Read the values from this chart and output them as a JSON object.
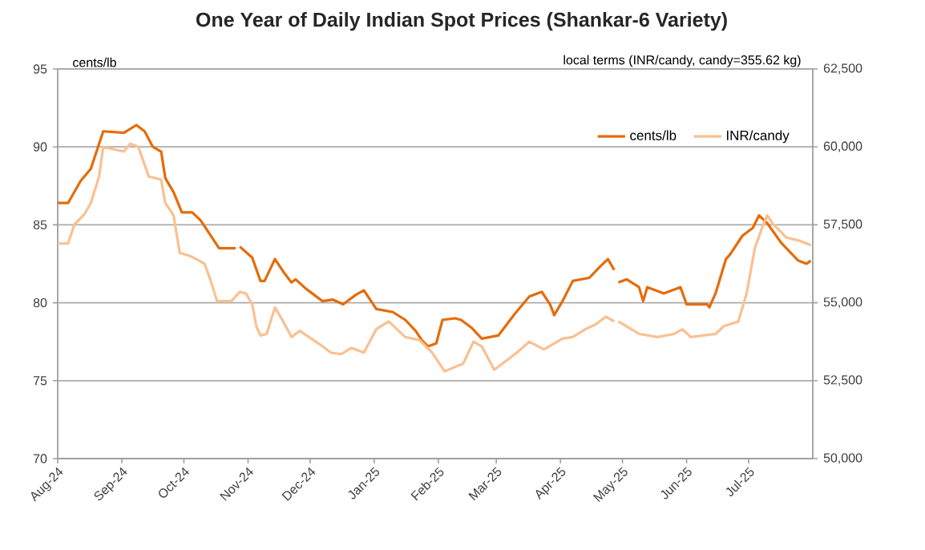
{
  "chart_data": {
    "type": "line",
    "title": "One Year of Daily Indian Spot Prices (Shankar-6 Variety)",
    "ylabel": "cents/lb",
    "y2label": "local terms (INR/candy, candy=355.62 kg)",
    "xlim": [
      "2024-08-01",
      "2025-08-01"
    ],
    "xticks": [
      {
        "value": "2024-08-01",
        "label": "Aug-24"
      },
      {
        "value": "2024-09-01",
        "label": "Sep-24"
      },
      {
        "value": "2024-10-01",
        "label": "Oct-24"
      },
      {
        "value": "2024-11-01",
        "label": "Nov-24"
      },
      {
        "value": "2024-12-01",
        "label": "Dec-24"
      },
      {
        "value": "2025-01-01",
        "label": "Jan-25"
      },
      {
        "value": "2025-02-01",
        "label": "Feb-25"
      },
      {
        "value": "2025-03-01",
        "label": "Mar-25"
      },
      {
        "value": "2025-04-01",
        "label": "Apr-25"
      },
      {
        "value": "2025-05-01",
        "label": "May-25"
      },
      {
        "value": "2025-06-01",
        "label": "Jun-25"
      },
      {
        "value": "2025-07-01",
        "label": "Jul-25"
      }
    ],
    "ylim": [
      70,
      95
    ],
    "yticks": [
      70,
      75,
      80,
      85,
      90,
      95
    ],
    "y2lim": [
      50000,
      62500
    ],
    "y2ticks": [
      {
        "value": 50000,
        "label": "50,000"
      },
      {
        "value": 52500,
        "label": "52,500"
      },
      {
        "value": 55000,
        "label": "55,000"
      },
      {
        "value": 57500,
        "label": "57,500"
      },
      {
        "value": 60000,
        "label": "60,000"
      },
      {
        "value": 62500,
        "label": "62,500"
      }
    ],
    "grid": "y",
    "legend": "top right",
    "marker": "none",
    "series": [
      {
        "name": "cents/lb",
        "color": "#e46c0a",
        "x": [
          "2024-08-01",
          "2024-08-06",
          "2024-08-12",
          "2024-08-17",
          "2024-08-23",
          "2024-09-02",
          "2024-09-08",
          "2024-09-12",
          "2024-09-16",
          "2024-09-20",
          "2024-09-22",
          "2024-09-26",
          "2024-09-30",
          "2024-10-05",
          "2024-10-09",
          "2024-10-13",
          "2024-10-18",
          "2024-10-26",
          "2024-10-27",
          "2024-10-28",
          "2024-11-03",
          "2024-11-07",
          "2024-11-09",
          "2024-11-14",
          "2024-11-18",
          "2024-11-22",
          "2024-11-24",
          "2024-11-29",
          "2024-12-07",
          "2024-12-12",
          "2024-12-17",
          "2024-12-23",
          "2024-12-27",
          "2025-01-02",
          "2025-01-10",
          "2025-01-16",
          "2025-01-21",
          "2025-01-24",
          "2025-01-27",
          "2025-01-31",
          "2025-02-03",
          "2025-02-09",
          "2025-02-12",
          "2025-02-17",
          "2025-02-22",
          "2025-03-02",
          "2025-03-10",
          "2025-03-17",
          "2025-03-23",
          "2025-03-27",
          "2025-03-29",
          "2025-04-02",
          "2025-04-07",
          "2025-04-15",
          "2025-04-20",
          "2025-04-24",
          "2025-04-27",
          "2025-04-28",
          "2025-04-29",
          "2025-05-03",
          "2025-05-09",
          "2025-05-11",
          "2025-05-13",
          "2025-05-21",
          "2025-05-29",
          "2025-06-01",
          "2025-06-11",
          "2025-06-12",
          "2025-06-15",
          "2025-06-20",
          "2025-06-22",
          "2025-06-28",
          "2025-07-03",
          "2025-07-06",
          "2025-07-10",
          "2025-07-17",
          "2025-07-25",
          "2025-07-29",
          "2025-07-31"
        ],
        "values": [
          86.4,
          86.4,
          87.8,
          88.6,
          91.0,
          90.9,
          91.4,
          91.0,
          90.0,
          89.7,
          88.0,
          87.1,
          85.8,
          85.8,
          85.3,
          84.5,
          83.5,
          83.5,
          null,
          83.6,
          82.9,
          81.4,
          81.4,
          82.8,
          82.0,
          81.3,
          81.5,
          80.9,
          80.1,
          80.2,
          79.9,
          80.5,
          80.8,
          79.6,
          79.4,
          78.9,
          78.2,
          77.6,
          77.2,
          77.4,
          78.9,
          79.0,
          78.9,
          78.4,
          77.7,
          77.9,
          79.3,
          80.4,
          80.7,
          79.9,
          79.2,
          80.1,
          81.4,
          81.6,
          82.3,
          82.8,
          82.1,
          null,
          81.3,
          81.5,
          81.0,
          80.1,
          81.0,
          80.6,
          81.0,
          79.9,
          79.9,
          79.7,
          80.6,
          82.8,
          83.1,
          84.3,
          84.8,
          85.6,
          85.1,
          83.8,
          82.7,
          82.5,
          82.7
        ]
      },
      {
        "name": "INR/candy",
        "color": "#fac090",
        "axis": "y2",
        "x": [
          "2024-08-01",
          "2024-08-06",
          "2024-08-09",
          "2024-08-14",
          "2024-08-17",
          "2024-08-21",
          "2024-08-23",
          "2024-09-02",
          "2024-09-05",
          "2024-09-09",
          "2024-09-14",
          "2024-09-20",
          "2024-09-22",
          "2024-09-26",
          "2024-09-29",
          "2024-10-04",
          "2024-10-07",
          "2024-10-11",
          "2024-10-14",
          "2024-10-17",
          "2024-10-24",
          "2024-10-28",
          "2024-10-31",
          "2024-11-03",
          "2024-11-05",
          "2024-11-07",
          "2024-11-10",
          "2024-11-14",
          "2024-11-18",
          "2024-11-22",
          "2024-11-26",
          "2024-12-06",
          "2024-12-11",
          "2024-12-16",
          "2024-12-21",
          "2024-12-27",
          "2025-01-02",
          "2025-01-08",
          "2025-01-16",
          "2025-01-23",
          "2025-01-29",
          "2025-02-04",
          "2025-02-13",
          "2025-02-18",
          "2025-02-22",
          "2025-02-28",
          "2025-03-10",
          "2025-03-17",
          "2025-03-24",
          "2025-04-02",
          "2025-04-07",
          "2025-04-13",
          "2025-04-18",
          "2025-04-23",
          "2025-04-27",
          "2025-04-28",
          "2025-04-29",
          "2025-05-09",
          "2025-05-18",
          "2025-05-26",
          "2025-05-30",
          "2025-06-03",
          "2025-06-15",
          "2025-06-19",
          "2025-06-26",
          "2025-06-30",
          "2025-07-04",
          "2025-07-08",
          "2025-07-10",
          "2025-07-13",
          "2025-07-17",
          "2025-07-19",
          "2025-07-25",
          "2025-07-29",
          "2025-07-31"
        ],
        "values": [
          56900,
          56900,
          57500,
          57850,
          58200,
          59050,
          60000,
          59850,
          60100,
          60000,
          59050,
          58950,
          58200,
          57800,
          56600,
          56500,
          56400,
          56250,
          55700,
          55050,
          55050,
          55350,
          55300,
          54950,
          54250,
          53950,
          54000,
          54850,
          54400,
          53900,
          54100,
          53650,
          53400,
          53350,
          53550,
          53400,
          54150,
          54400,
          53900,
          53800,
          53400,
          52800,
          53050,
          53750,
          53600,
          52850,
          53350,
          53750,
          53500,
          53850,
          53900,
          54150,
          54300,
          54550,
          54400,
          null,
          54400,
          54000,
          53900,
          54000,
          54150,
          53900,
          54000,
          54250,
          54400,
          55300,
          56750,
          57500,
          57800,
          57500,
          57250,
          57100,
          57000,
          56900,
          56850
        ]
      }
    ]
  }
}
